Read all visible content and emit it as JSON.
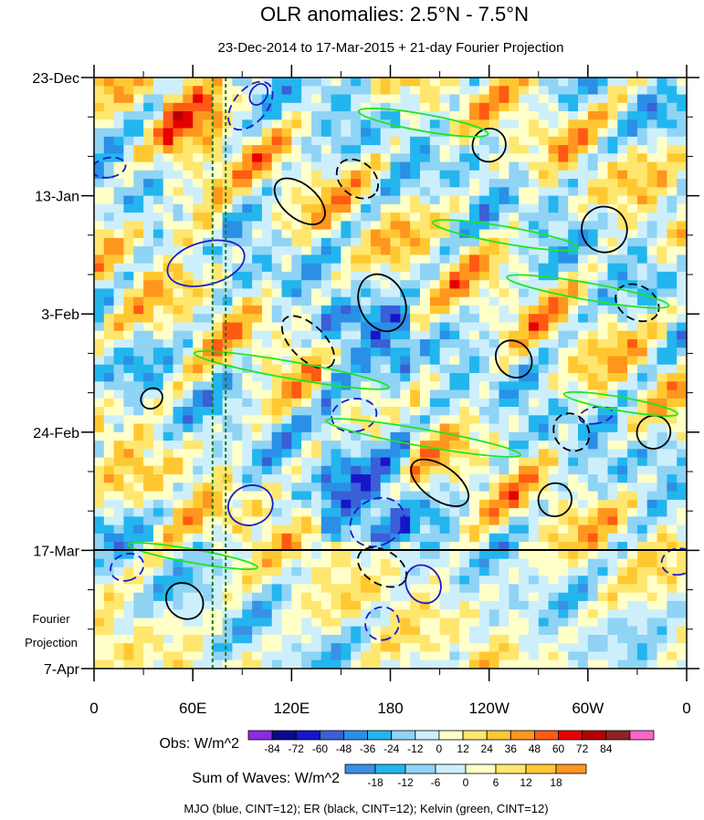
{
  "chart_data": {
    "type": "heatmap",
    "title": "OLR anomalies: 2.5°N - 7.5°N",
    "subtitle": "23-Dec-2014 to 17-Mar-2015 + 21-day Fourier Projection",
    "x_axis": {
      "ticks": [
        "0",
        "60E",
        "120E",
        "180",
        "120W",
        "60W",
        "0"
      ],
      "longitudes": [
        0,
        60,
        120,
        180,
        240,
        300,
        360
      ]
    },
    "y_axis": {
      "ticks": [
        "23-Dec",
        "13-Jan",
        "3-Feb",
        "24-Feb",
        "17-Mar",
        "7-Apr"
      ],
      "tick_day": [
        0,
        21,
        42,
        63,
        84,
        105
      ],
      "projection_label_line1": "Fourier",
      "projection_label_line2": "Projection"
    },
    "obs_scale": {
      "label": "Obs: W/m^2",
      "levels": [
        "-84",
        "-72",
        "-60",
        "-48",
        "-36",
        "-24",
        "-12",
        "0",
        "12",
        "24",
        "36",
        "48",
        "60",
        "72",
        "84"
      ],
      "colors": [
        "#8a2be2",
        "#0a0a8c",
        "#1616c8",
        "#3a5fd6",
        "#2a8fe6",
        "#23b5ee",
        "#8fd3f5",
        "#cdeffb",
        "#ffffc8",
        "#ffe66e",
        "#ffc832",
        "#ff961e",
        "#ff5a14",
        "#e60000",
        "#b40000",
        "#8c2323",
        "#ff64c8"
      ]
    },
    "waves_scale": {
      "label": "Sum of Waves: W/m^2",
      "levels": [
        "-18",
        "-12",
        "-6",
        "0",
        "6",
        "12",
        "18"
      ],
      "colors": [
        "#3a8fe6",
        "#23b5ee",
        "#8fd3f5",
        "#cdeffb",
        "#ffffc8",
        "#ffe66e",
        "#ffc832",
        "#ff961e"
      ]
    },
    "footer_note": "MJO (blue, CINT=12); ER (black, CINT=12); Kelvin (green, CINT=12)",
    "series": [
      {
        "name": "MJO",
        "color": "#1a1acd",
        "cint": 12,
        "contours": [
          {
            "lon": 68,
            "day": 33,
            "rx": 13,
            "ry": 7,
            "angle": 75,
            "dash": false
          },
          {
            "lon": 95,
            "day": 5,
            "rx": 10,
            "ry": 5,
            "angle": 40,
            "dash": true
          },
          {
            "lon": 9,
            "day": 16,
            "rx": 6,
            "ry": 3,
            "angle": 80,
            "dash": true
          },
          {
            "lon": 158,
            "day": 60,
            "rx": 10,
            "ry": 4,
            "angle": 80,
            "dash": true
          },
          {
            "lon": 172,
            "day": 79,
            "rx": 14,
            "ry": 5,
            "angle": 60,
            "dash": true
          },
          {
            "lon": 95,
            "day": 76,
            "rx": 12,
            "ry": 4,
            "angle": 70,
            "dash": false
          },
          {
            "lon": 20,
            "day": 87,
            "rx": 8,
            "ry": 3,
            "angle": 70,
            "dash": true
          },
          {
            "lon": 175,
            "day": 97,
            "rx": 10,
            "ry": 3,
            "angle": 65,
            "dash": true
          },
          {
            "lon": 305,
            "day": 60,
            "rx": 5,
            "ry": 3,
            "angle": 80,
            "dash": true
          },
          {
            "lon": 355,
            "day": 86,
            "rx": 8,
            "ry": 3,
            "angle": 80,
            "dash": true
          },
          {
            "lon": 200,
            "day": 90,
            "rx": 12,
            "ry": 3,
            "angle": 60,
            "dash": false
          },
          {
            "lon": 100,
            "day": 3,
            "rx": 5,
            "ry": 2,
            "angle": 30,
            "dash": false
          }
        ]
      },
      {
        "name": "ER",
        "color": "#000000",
        "cint": 12,
        "contours": [
          {
            "lon": 125,
            "day": 22,
            "rx": 18,
            "ry": 3,
            "angle": 40,
            "dash": false
          },
          {
            "lon": 175,
            "day": 40,
            "rx": 18,
            "ry": 4,
            "angle": 65,
            "dash": false
          },
          {
            "lon": 210,
            "day": 72,
            "rx": 20,
            "ry": 3,
            "angle": 35,
            "dash": false
          },
          {
            "lon": 310,
            "day": 27,
            "rx": 14,
            "ry": 4,
            "angle": 55,
            "dash": false
          },
          {
            "lon": 290,
            "day": 63,
            "rx": 12,
            "ry": 3,
            "angle": 55,
            "dash": true
          },
          {
            "lon": 240,
            "day": 12,
            "rx": 10,
            "ry": 3,
            "angle": 45,
            "dash": false
          },
          {
            "lon": 160,
            "day": 18,
            "rx": 14,
            "ry": 3,
            "angle": 40,
            "dash": true
          },
          {
            "lon": 175,
            "day": 87,
            "rx": 16,
            "ry": 3,
            "angle": 30,
            "dash": true
          },
          {
            "lon": 55,
            "day": 93,
            "rx": 12,
            "ry": 3,
            "angle": 40,
            "dash": false
          },
          {
            "lon": 340,
            "day": 63,
            "rx": 10,
            "ry": 3,
            "angle": 60,
            "dash": false
          },
          {
            "lon": 280,
            "day": 75,
            "rx": 10,
            "ry": 3,
            "angle": 45,
            "dash": false
          },
          {
            "lon": 130,
            "day": 47,
            "rx": 20,
            "ry": 3,
            "angle": 45,
            "dash": true
          },
          {
            "lon": 255,
            "day": 50,
            "rx": 12,
            "ry": 3,
            "angle": 50,
            "dash": false
          },
          {
            "lon": 330,
            "day": 40,
            "rx": 14,
            "ry": 3,
            "angle": 30,
            "dash": true
          },
          {
            "lon": 35,
            "day": 57,
            "rx": 6,
            "ry": 2,
            "angle": 55,
            "dash": false
          }
        ]
      },
      {
        "name": "Kelvin",
        "color": "#1ee61e",
        "cint": 12,
        "contours": [
          {
            "lon": 200,
            "day": 8,
            "rx": 40,
            "ry": 1.5,
            "angle": 10,
            "dash": false
          },
          {
            "lon": 250,
            "day": 28,
            "rx": 45,
            "ry": 1.5,
            "angle": 10,
            "dash": false
          },
          {
            "lon": 120,
            "day": 52,
            "rx": 60,
            "ry": 1.5,
            "angle": 10,
            "dash": false
          },
          {
            "lon": 200,
            "day": 64,
            "rx": 60,
            "ry": 1.5,
            "angle": 10,
            "dash": false
          },
          {
            "lon": 300,
            "day": 38,
            "rx": 50,
            "ry": 1.5,
            "angle": 10,
            "dash": false
          },
          {
            "lon": 60,
            "day": 85,
            "rx": 40,
            "ry": 1.2,
            "angle": 10,
            "dash": false
          },
          {
            "lon": 320,
            "day": 58,
            "rx": 35,
            "ry": 1.2,
            "angle": 10,
            "dash": false
          }
        ]
      }
    ],
    "reference_lines": [
      {
        "lon": 72,
        "color": "#1f7a1f"
      },
      {
        "lon": 80,
        "color": "#1f7a1f"
      }
    ],
    "forecast_start_day": 84,
    "total_days": 105
  }
}
